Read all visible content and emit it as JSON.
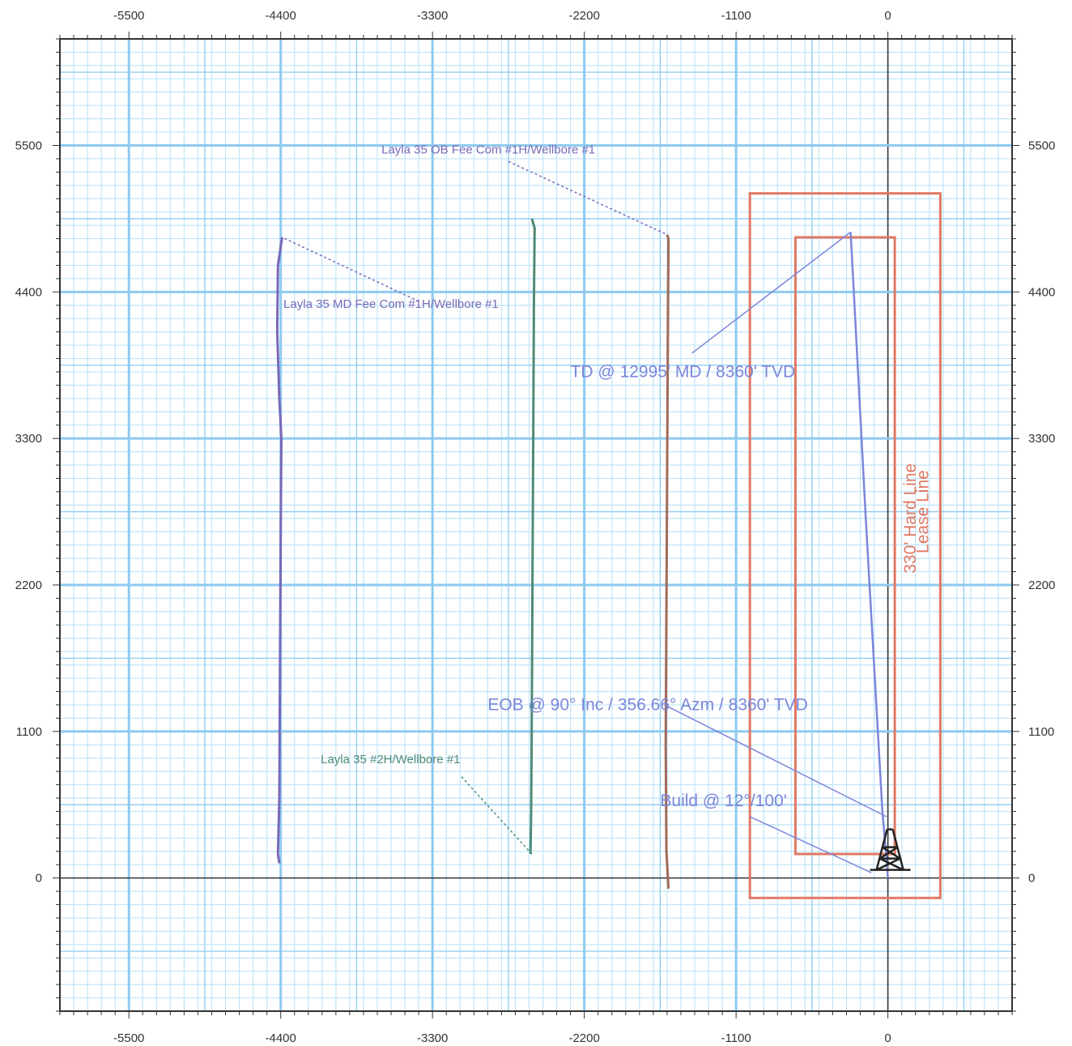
{
  "chart_data": {
    "type": "line",
    "title": "",
    "xlabel": "",
    "ylabel": "",
    "xlim": [
      -6000,
      900
    ],
    "ylim": [
      -1000,
      6300
    ],
    "x_ticks": [
      -5500,
      -4400,
      -3300,
      -2200,
      -1100,
      0
    ],
    "y_ticks": [
      5500,
      4400,
      3300,
      2200,
      1100,
      0
    ],
    "x_tick_labels": [
      "-5500",
      "-4400",
      "-3300",
      "-2200",
      "-1100",
      "0"
    ],
    "y_tick_labels": [
      "5500",
      "4400",
      "3300",
      "2200",
      "1100",
      "0"
    ],
    "grid": true,
    "colors": {
      "grid_major": "#8ecaf0",
      "grid_minor": "#bfe5f8",
      "axis": "#333333",
      "lease": "#e07865",
      "purple": "#7a68b8",
      "green": "#4e8a78",
      "brown": "#a06a58",
      "blue": "#7b86da"
    },
    "series": [
      {
        "color": "#7a68b8",
        "x": [
          -4390,
          -4420,
          -4425,
          -4410,
          -4395,
          -4400,
          -4405,
          -4410,
          -4420,
          -4410
        ],
        "y": [
          4810,
          4600,
          4100,
          3600,
          3300,
          2600,
          1600,
          600,
          180,
          110
        ]
      },
      {
        "color": "#4e8a78",
        "x": [
          -2580,
          -2560,
          -2565,
          -2570,
          -2575,
          -2580,
          -2585,
          -2590
        ],
        "y": [
          4950,
          4880,
          4300,
          3300,
          2300,
          1300,
          500,
          180
        ]
      },
      {
        "color": "#a06a58",
        "x": [
          -1600,
          -1590,
          -1595,
          -1600,
          -1605,
          -1610,
          -1605,
          -1590
        ],
        "y": [
          4830,
          4800,
          4000,
          3000,
          2000,
          1000,
          200,
          -80
        ]
      },
      {
        "color": "#7b86da",
        "x": [
          0,
          -10,
          -40,
          -160,
          -270
        ],
        "y": [
          0,
          150,
          500,
          2700,
          4850
        ]
      }
    ],
    "boundaries": [
      {
        "label": "Lease Line",
        "x": [
          -1000,
          380
        ],
        "y": [
          -150,
          5140
        ]
      },
      {
        "label": "330' Hard Line",
        "x": [
          -670,
          50
        ],
        "y": [
          180,
          4810
        ]
      }
    ],
    "annotations": [
      {
        "text": "Layla 35 OB Fee Com #1H/Wellbore #1",
        "x": -3670,
        "y": 5440,
        "point_x": -1600,
        "point_y": 4830
      },
      {
        "text": "Layla 35 MD Fee Com #1H/Wellbore #1",
        "x": -4380,
        "y": 4280,
        "point_x": -4390,
        "point_y": 4810
      },
      {
        "text": "Layla 35 #2H/Wellbore #1",
        "x": -4110,
        "y": 860,
        "point_x": -2580,
        "point_y": 180
      },
      {
        "text": "TD @ 12995' MD / 8360' TVD",
        "x": -2300,
        "y": 3760,
        "point_x": -270,
        "point_y": 4850
      },
      {
        "text": "EOB @ 90° Inc / 356.66° Azm / 8360' TVD",
        "x": -2900,
        "y": 1260,
        "point_x": -10,
        "point_y": 460
      },
      {
        "text": "Build @ 12°/100'",
        "x": -1650,
        "y": 540,
        "point_x": -120,
        "point_y": 40
      }
    ],
    "rig_symbol": {
      "name": "drilling-rig-icon",
      "x": 0,
      "y": 0
    }
  }
}
